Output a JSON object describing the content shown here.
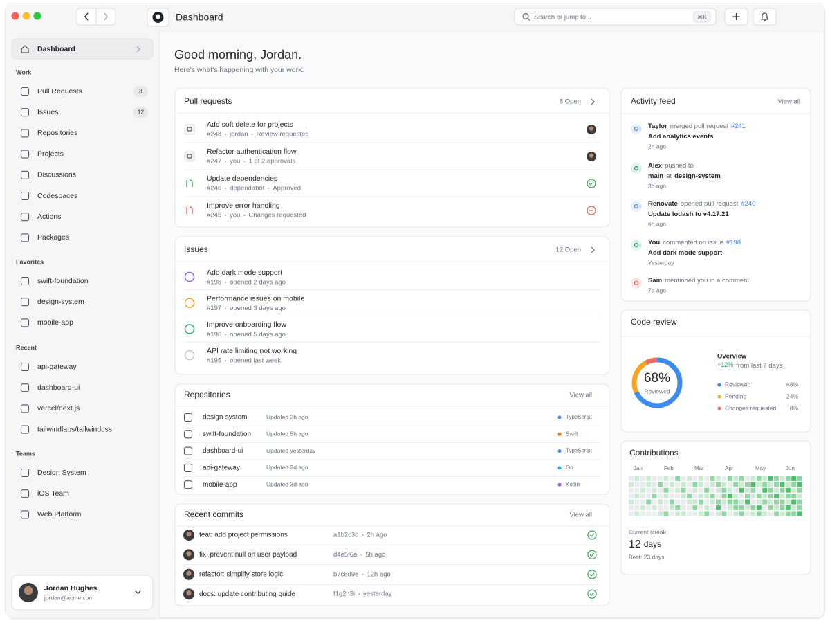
{
  "titlebar": {
    "title": "Dashboard",
    "search": "Search or jump to...",
    "shortcut": "⌘K"
  },
  "sidebar": {
    "active": "Dashboard",
    "sections": [
      {
        "title": "Work",
        "items": [
          {
            "label": "Pull Requests",
            "count": 8
          },
          {
            "label": "Issues",
            "count": 12
          },
          {
            "label": "Repositories"
          },
          {
            "label": "Projects"
          },
          {
            "label": "Discussions"
          },
          {
            "label": "Codespaces"
          },
          {
            "label": "Actions"
          },
          {
            "label": "Packages"
          }
        ]
      },
      {
        "title": "Favorites",
        "items": [
          {
            "label": "swift-foundation"
          },
          {
            "label": "design-system"
          },
          {
            "label": "mobile-app"
          }
        ]
      },
      {
        "title": "Recent",
        "items": [
          {
            "label": "api-gateway"
          },
          {
            "label": "dashboard-ui"
          },
          {
            "label": "vercel/next.js"
          },
          {
            "label": "tailwindlabs/tailwindcss"
          }
        ]
      },
      {
        "title": "Teams",
        "items": [
          {
            "label": "Design System"
          },
          {
            "label": "iOS Team"
          },
          {
            "label": "Web Platform"
          }
        ]
      }
    ],
    "user": {
      "name": "Jordan Hughes",
      "email": "jordan@acme.com"
    }
  },
  "greeting": {
    "title": "Good morning, Jordan.",
    "subtitle": "Here's what's happening with your work."
  },
  "pull_requests": {
    "title": "Pull requests",
    "count": "8 Open",
    "items": [
      {
        "title": "Add soft delete for projects",
        "number": "#248",
        "author": "jordan",
        "status": "Review requested",
        "color": "#6b7280"
      },
      {
        "title": "Refactor authentication flow",
        "number": "#247",
        "author": "you",
        "status": "1 of 2 approvals",
        "color": "#6b7280"
      },
      {
        "title": "Update dependencies",
        "number": "#246",
        "author": "dependabot",
        "status": "Approved",
        "color": "#2da44e"
      },
      {
        "title": "Improve error handling",
        "number": "#245",
        "author": "you",
        "status": "Changes requested",
        "color": "#e5534b"
      }
    ]
  },
  "issues": {
    "title": "Issues",
    "count": "12 Open",
    "items": [
      {
        "title": "Add dark mode support",
        "number": "#198",
        "opened": "opened 2 days ago",
        "color": "#8b5cf6"
      },
      {
        "title": "Performance issues on mobile",
        "number": "#197",
        "opened": "opened 3 days ago",
        "color": "#f59e0b"
      },
      {
        "title": "Improve onboarding flow",
        "number": "#196",
        "opened": "opened 5 days ago",
        "color": "#22a06b"
      },
      {
        "title": "API rate limiting not working",
        "number": "#195",
        "opened": "opened last week",
        "color": "#c4c4c8"
      }
    ]
  },
  "repositories": {
    "title": "Repositories",
    "link": "View all",
    "items": [
      {
        "name": "design-system",
        "updated": "Updated 2h ago",
        "language": "TypeScript",
        "color": "#3b82f6"
      },
      {
        "name": "swift-foundation",
        "updated": "Updated 5h ago",
        "language": "Swift",
        "color": "#f97316"
      },
      {
        "name": "dashboard-ui",
        "updated": "Updated yesterday",
        "language": "TypeScript",
        "color": "#3b82f6"
      },
      {
        "name": "api-gateway",
        "updated": "Updated 2d ago",
        "language": "Go",
        "color": "#06b6d4"
      },
      {
        "name": "mobile-app",
        "updated": "Updated 3d ago",
        "language": "Kotlin",
        "color": "#a855f7"
      }
    ]
  },
  "commits": {
    "title": "Recent commits",
    "link": "View all",
    "items": [
      {
        "message": "feat: add project permissions",
        "hash": "a1b2c3d",
        "time": "2h ago"
      },
      {
        "message": "fix: prevent null on user payload",
        "hash": "d4e5f6a",
        "time": "5h ago"
      },
      {
        "message": "refactor: simplify store logic",
        "hash": "b7c8d9e",
        "time": "12h ago"
      },
      {
        "message": "docs: update contributing guide",
        "hash": "f1g2h3i",
        "time": "yesterday"
      }
    ]
  },
  "activity": {
    "title": "Activity feed",
    "link": "View all",
    "items": [
      {
        "actor": "Taylor",
        "action": "merged pull request",
        "ref": "#241",
        "detail": [
          "Add analytics events"
        ],
        "time": "2h ago",
        "color": "#3b82f6"
      },
      {
        "actor": "Alex",
        "action": "pushed to",
        "detail": [
          "main",
          "at",
          "design-system"
        ],
        "time": "3h ago",
        "color": "#22a06b"
      },
      {
        "actor": "Renovate",
        "action": "opened pull request",
        "ref": "#240",
        "detail": [
          "Update lodash to v4.17.21"
        ],
        "time": "6h ago",
        "color": "#3b82f6"
      },
      {
        "actor": "You",
        "action": "commented on issue",
        "ref": "#198",
        "detail": [
          "Add dark mode support"
        ],
        "time": "Yesterday",
        "color": "#22a06b"
      },
      {
        "actor": "Sam",
        "action": "mentioned you in a comment",
        "time": "7d ago",
        "color": "#e5534b"
      }
    ]
  },
  "code_review": {
    "title": "Code review",
    "overview": "Overview",
    "change": "+12%",
    "change_note": "from last 7 days",
    "legend": [
      {
        "name": "Reviewed",
        "value": 68,
        "value_label": "68%",
        "color": "#3b8ced"
      },
      {
        "name": "Pending",
        "value": 24,
        "value_label": "24%",
        "color": "#f5a524"
      },
      {
        "name": "Changes requested",
        "value": 8,
        "value_label": "8%",
        "color": "#ef6b5b"
      }
    ]
  },
  "contributions": {
    "title": "Contributions",
    "months": [
      "Jan",
      "Feb",
      "Mar",
      "Apr",
      "May",
      "Jun"
    ],
    "palette": [
      "#e9ebee",
      "#c9ebd2",
      "#8fd6a3",
      "#4cbf6b"
    ],
    "weeks": [
      [
        0,
        1,
        0,
        0,
        1,
        0,
        0
      ],
      [
        1,
        0,
        0,
        1,
        0,
        0,
        1
      ],
      [
        0,
        0,
        1,
        0,
        0,
        1,
        0
      ],
      [
        1,
        1,
        0,
        0,
        2,
        0,
        0
      ],
      [
        0,
        0,
        1,
        2,
        0,
        1,
        0
      ],
      [
        0,
        2,
        0,
        0,
        1,
        0,
        1
      ],
      [
        1,
        0,
        2,
        1,
        0,
        0,
        2
      ],
      [
        0,
        1,
        0,
        0,
        2,
        1,
        0
      ],
      [
        2,
        0,
        1,
        0,
        0,
        2,
        1
      ],
      [
        0,
        1,
        2,
        1,
        0,
        0,
        1
      ],
      [
        1,
        0,
        0,
        2,
        1,
        0,
        0
      ],
      [
        0,
        2,
        1,
        0,
        1,
        2,
        0
      ],
      [
        1,
        1,
        0,
        1,
        2,
        0,
        1
      ],
      [
        0,
        0,
        2,
        1,
        0,
        1,
        2
      ],
      [
        2,
        1,
        0,
        2,
        1,
        0,
        0
      ],
      [
        1,
        2,
        1,
        0,
        2,
        3,
        1
      ],
      [
        0,
        1,
        2,
        2,
        1,
        0,
        2
      ],
      [
        2,
        0,
        1,
        3,
        2,
        1,
        0
      ],
      [
        1,
        2,
        0,
        1,
        2,
        2,
        1
      ],
      [
        2,
        1,
        3,
        0,
        1,
        2,
        2
      ],
      [
        0,
        2,
        1,
        2,
        3,
        1,
        0
      ],
      [
        1,
        3,
        2,
        1,
        0,
        2,
        1
      ],
      [
        2,
        1,
        0,
        2,
        1,
        3,
        2
      ],
      [
        1,
        2,
        3,
        1,
        2,
        0,
        1
      ],
      [
        3,
        1,
        2,
        2,
        1,
        2,
        0
      ],
      [
        2,
        2,
        1,
        3,
        2,
        1,
        2
      ],
      [
        1,
        3,
        2,
        1,
        2,
        2,
        1
      ],
      [
        2,
        1,
        3,
        2,
        1,
        3,
        2
      ],
      [
        3,
        2,
        1,
        2,
        3,
        1,
        2
      ],
      [
        2,
        3,
        2,
        1,
        2,
        2,
        3
      ]
    ],
    "streak_label": "Current streak",
    "streak": 12,
    "streak_unit": "days",
    "best": "Best: 23 days"
  }
}
